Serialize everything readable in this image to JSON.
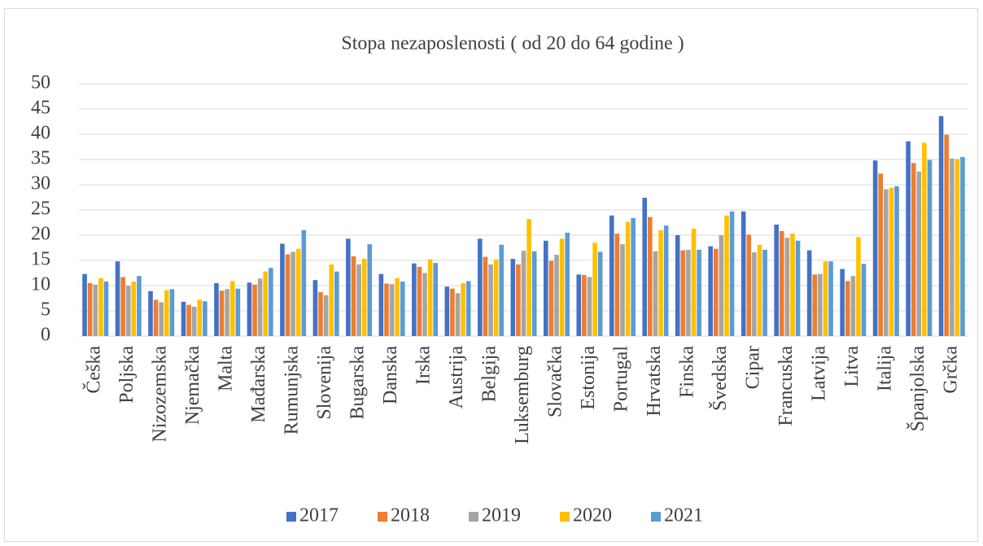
{
  "chart_data": {
    "type": "bar",
    "title": "Stopa nezaposlenosti ( od 20 do 64 godine )",
    "categories": [
      "Češka",
      "Poljska",
      "Nizozemska",
      "Njemačka",
      "Malta",
      "Mađarska",
      "Rumunjska",
      "Slovenija",
      "Bugarska",
      "Danska",
      "Irska",
      "Austrija",
      "Belgija",
      "Luksemburg",
      "Slovačka",
      "Estonija",
      "Portugal",
      "Hrvatska",
      "Finska",
      "Švedska",
      "Cipar",
      "Francuska",
      "Latvija",
      "Litva",
      "Italija",
      "Španjolska",
      "Grčka"
    ],
    "series": [
      {
        "name": "2017",
        "color": "#4472c4",
        "values": [
          12.3,
          14.8,
          8.9,
          6.8,
          10.5,
          10.6,
          18.3,
          11.1,
          19.3,
          12.3,
          14.4,
          9.8,
          19.3,
          15.3,
          18.9,
          12.2,
          23.9,
          27.4,
          20.0,
          17.8,
          24.7,
          22.1,
          17.0,
          13.3,
          34.8,
          38.6,
          43.6
        ]
      },
      {
        "name": "2018",
        "color": "#ed7d31",
        "values": [
          10.5,
          11.7,
          7.2,
          6.2,
          9.0,
          10.2,
          16.2,
          8.7,
          15.8,
          10.4,
          13.7,
          9.4,
          15.7,
          14.2,
          14.9,
          12.1,
          20.3,
          23.6,
          17.0,
          17.3,
          20.1,
          20.8,
          12.2,
          10.9,
          32.2,
          34.3,
          39.9
        ]
      },
      {
        "name": "2019",
        "color": "#a5a5a5",
        "values": [
          10.2,
          10.0,
          6.7,
          5.8,
          9.3,
          11.4,
          16.7,
          8.1,
          14.2,
          10.3,
          12.5,
          8.5,
          14.2,
          16.9,
          16.1,
          11.7,
          18.2,
          16.8,
          17.1,
          20.0,
          16.6,
          19.5,
          12.3,
          11.9,
          29.1,
          32.6,
          35.2
        ]
      },
      {
        "name": "2020",
        "color": "#ffc000",
        "values": [
          11.5,
          10.8,
          9.1,
          7.2,
          10.9,
          12.8,
          17.3,
          14.2,
          15.3,
          11.5,
          15.2,
          10.5,
          15.2,
          23.2,
          19.3,
          18.5,
          22.6,
          21.0,
          21.3,
          23.9,
          18.1,
          20.3,
          14.8,
          19.6,
          29.4,
          38.3,
          35.1
        ]
      },
      {
        "name": "2021",
        "color": "#5b9bd5",
        "values": [
          10.8,
          11.9,
          9.3,
          6.9,
          9.4,
          13.5,
          21.0,
          12.8,
          18.2,
          10.8,
          14.5,
          10.9,
          18.1,
          16.8,
          20.5,
          16.7,
          23.4,
          21.9,
          17.1,
          24.7,
          17.1,
          18.9,
          14.8,
          14.3,
          29.7,
          34.9,
          35.5
        ]
      }
    ],
    "ylim": [
      0,
      50
    ],
    "yticks": [
      0,
      5,
      10,
      15,
      20,
      25,
      30,
      35,
      40,
      45,
      50
    ],
    "grid": true,
    "legend": "bottom"
  }
}
